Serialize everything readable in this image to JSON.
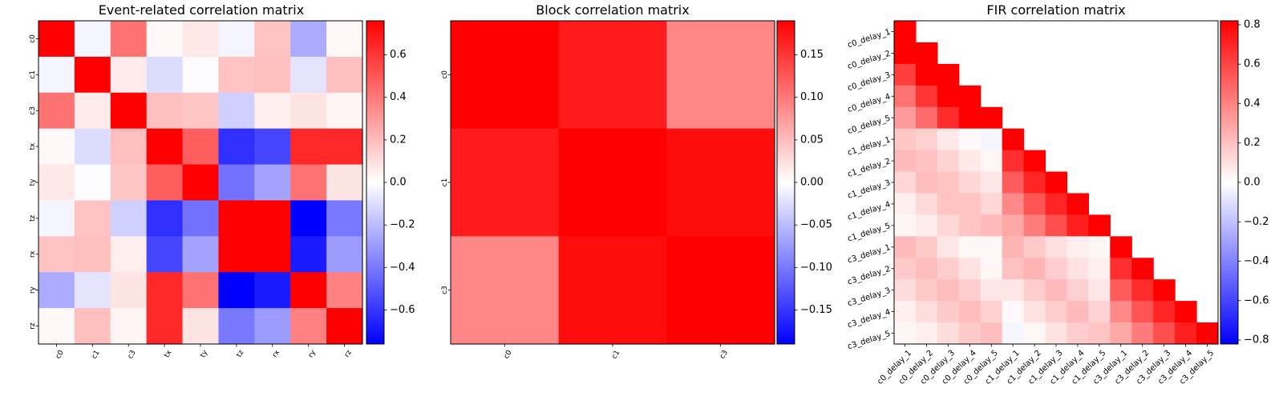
{
  "chart_data": [
    {
      "type": "heatmap",
      "title": "Event-related correlation matrix",
      "labels": [
        "c0",
        "c1",
        "c3",
        "tx",
        "ty",
        "tz",
        "rx",
        "ry",
        "rz"
      ],
      "values": [
        [
          0.76,
          -0.03,
          0.42,
          0.02,
          0.07,
          -0.03,
          0.18,
          -0.25,
          0.02
        ],
        [
          -0.03,
          0.76,
          0.06,
          -0.1,
          -0.01,
          0.18,
          0.19,
          -0.08,
          0.19
        ],
        [
          0.42,
          0.06,
          0.76,
          0.19,
          0.17,
          -0.14,
          0.05,
          0.08,
          0.03
        ],
        [
          0.02,
          -0.1,
          0.19,
          0.76,
          0.48,
          -0.62,
          -0.55,
          0.64,
          0.64
        ],
        [
          0.07,
          -0.01,
          0.17,
          0.48,
          0.76,
          -0.42,
          -0.27,
          0.42,
          0.08
        ],
        [
          -0.03,
          0.18,
          -0.14,
          -0.62,
          -0.42,
          0.76,
          0.76,
          -0.76,
          -0.4
        ],
        [
          0.18,
          0.19,
          0.05,
          -0.55,
          -0.27,
          0.76,
          0.76,
          -0.68,
          -0.3
        ],
        [
          -0.25,
          -0.08,
          0.08,
          0.64,
          0.42,
          -0.76,
          -0.68,
          0.76,
          0.38
        ],
        [
          0.02,
          0.19,
          0.03,
          0.64,
          0.08,
          -0.4,
          -0.3,
          0.38,
          0.76
        ]
      ],
      "colorbar": {
        "range": [
          -0.76,
          0.76
        ],
        "ticks": [
          -0.6,
          -0.4,
          -0.2,
          0.0,
          0.2,
          0.4,
          0.6
        ],
        "tick_labels": [
          "−0.6",
          "−0.4",
          "−0.2",
          "0.0",
          "0.2",
          "0.4",
          "0.6"
        ]
      },
      "colormap": {
        "low": "#0000ff",
        "mid": "#ffffff",
        "high": "#ff0000"
      }
    },
    {
      "type": "heatmap",
      "title": "Block correlation matrix",
      "labels": [
        "c0",
        "c1",
        "c3"
      ],
      "values": [
        [
          0.19,
          0.17,
          0.09
        ],
        [
          0.17,
          0.19,
          0.18
        ],
        [
          0.09,
          0.18,
          0.19
        ]
      ],
      "colorbar": {
        "range": [
          -0.19,
          0.19
        ],
        "ticks": [
          -0.15,
          -0.1,
          -0.05,
          0.0,
          0.05,
          0.1,
          0.15
        ],
        "tick_labels": [
          "−0.15",
          "−0.10",
          "−0.05",
          "0.00",
          "0.05",
          "0.10",
          "0.15"
        ]
      },
      "colormap": {
        "low": "#0000ff",
        "mid": "#ffffff",
        "high": "#ff0000"
      }
    },
    {
      "type": "heatmap",
      "title": "FIR correlation matrix",
      "labels": [
        "c0_delay_1",
        "c0_delay_2",
        "c0_delay_3",
        "c0_delay_4",
        "c0_delay_5",
        "c1_delay_1",
        "c1_delay_2",
        "c1_delay_3",
        "c1_delay_4",
        "c1_delay_5",
        "c3_delay_1",
        "c3_delay_2",
        "c3_delay_3",
        "c3_delay_4",
        "c3_delay_5"
      ],
      "lower_triangle_only": true,
      "values": [
        [
          0.82
        ],
        [
          0.82,
          0.82
        ],
        [
          0.62,
          0.82,
          0.82
        ],
        [
          0.45,
          0.65,
          0.82,
          0.82
        ],
        [
          0.32,
          0.48,
          0.68,
          0.82,
          0.82
        ],
        [
          0.18,
          0.15,
          0.07,
          0.02,
          -0.03,
          0.82
        ],
        [
          0.22,
          0.2,
          0.14,
          0.07,
          0.03,
          0.67,
          0.82
        ],
        [
          0.13,
          0.21,
          0.19,
          0.13,
          0.08,
          0.52,
          0.7,
          0.82
        ],
        [
          0.05,
          0.12,
          0.19,
          0.19,
          0.13,
          0.38,
          0.55,
          0.7,
          0.82
        ],
        [
          0.03,
          0.06,
          0.13,
          0.19,
          0.22,
          0.28,
          0.42,
          0.57,
          0.72,
          0.82
        ],
        [
          0.22,
          0.17,
          0.08,
          0.03,
          0.03,
          0.24,
          0.17,
          0.1,
          0.05,
          0.03,
          0.82
        ],
        [
          0.17,
          0.21,
          0.16,
          0.09,
          0.03,
          0.2,
          0.24,
          0.16,
          0.09,
          0.05,
          0.67,
          0.82
        ],
        [
          0.11,
          0.17,
          0.21,
          0.16,
          0.08,
          0.08,
          0.16,
          0.22,
          0.15,
          0.08,
          0.52,
          0.68,
          0.82
        ],
        [
          0.05,
          0.11,
          0.17,
          0.21,
          0.15,
          0.02,
          0.09,
          0.16,
          0.22,
          0.14,
          0.38,
          0.55,
          0.7,
          0.82
        ],
        [
          0.03,
          0.05,
          0.11,
          0.17,
          0.21,
          -0.03,
          0.03,
          0.09,
          0.16,
          0.19,
          0.28,
          0.42,
          0.57,
          0.72,
          0.82
        ]
      ],
      "colorbar": {
        "range": [
          -0.82,
          0.82
        ],
        "ticks": [
          -0.8,
          -0.6,
          -0.4,
          -0.2,
          0.0,
          0.2,
          0.4,
          0.6,
          0.8
        ],
        "tick_labels": [
          "−0.8",
          "−0.6",
          "−0.4",
          "−0.2",
          "0.0",
          "0.2",
          "0.4",
          "0.6",
          "0.8"
        ]
      },
      "colormap": {
        "low": "#0000ff",
        "mid": "#ffffff",
        "high": "#ff0000"
      }
    }
  ]
}
